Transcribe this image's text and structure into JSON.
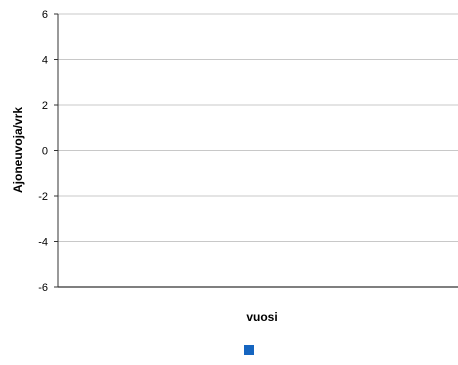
{
  "chart_data": {
    "type": "line",
    "title": "",
    "xlabel": "vuosi",
    "ylabel": "Ajoneuvoja/vrk",
    "ylim": [
      -6,
      6
    ],
    "y_ticks": [
      6,
      4,
      2,
      0,
      -2,
      -4,
      -6
    ],
    "y_tick_labels": [
      "6",
      "4",
      "2",
      "0",
      "-2",
      "-4",
      "-6"
    ],
    "grid": true,
    "categories": [],
    "series": [
      {
        "values": [],
        "color": "#1565c0"
      }
    ],
    "legend_position": "bottom-center"
  }
}
